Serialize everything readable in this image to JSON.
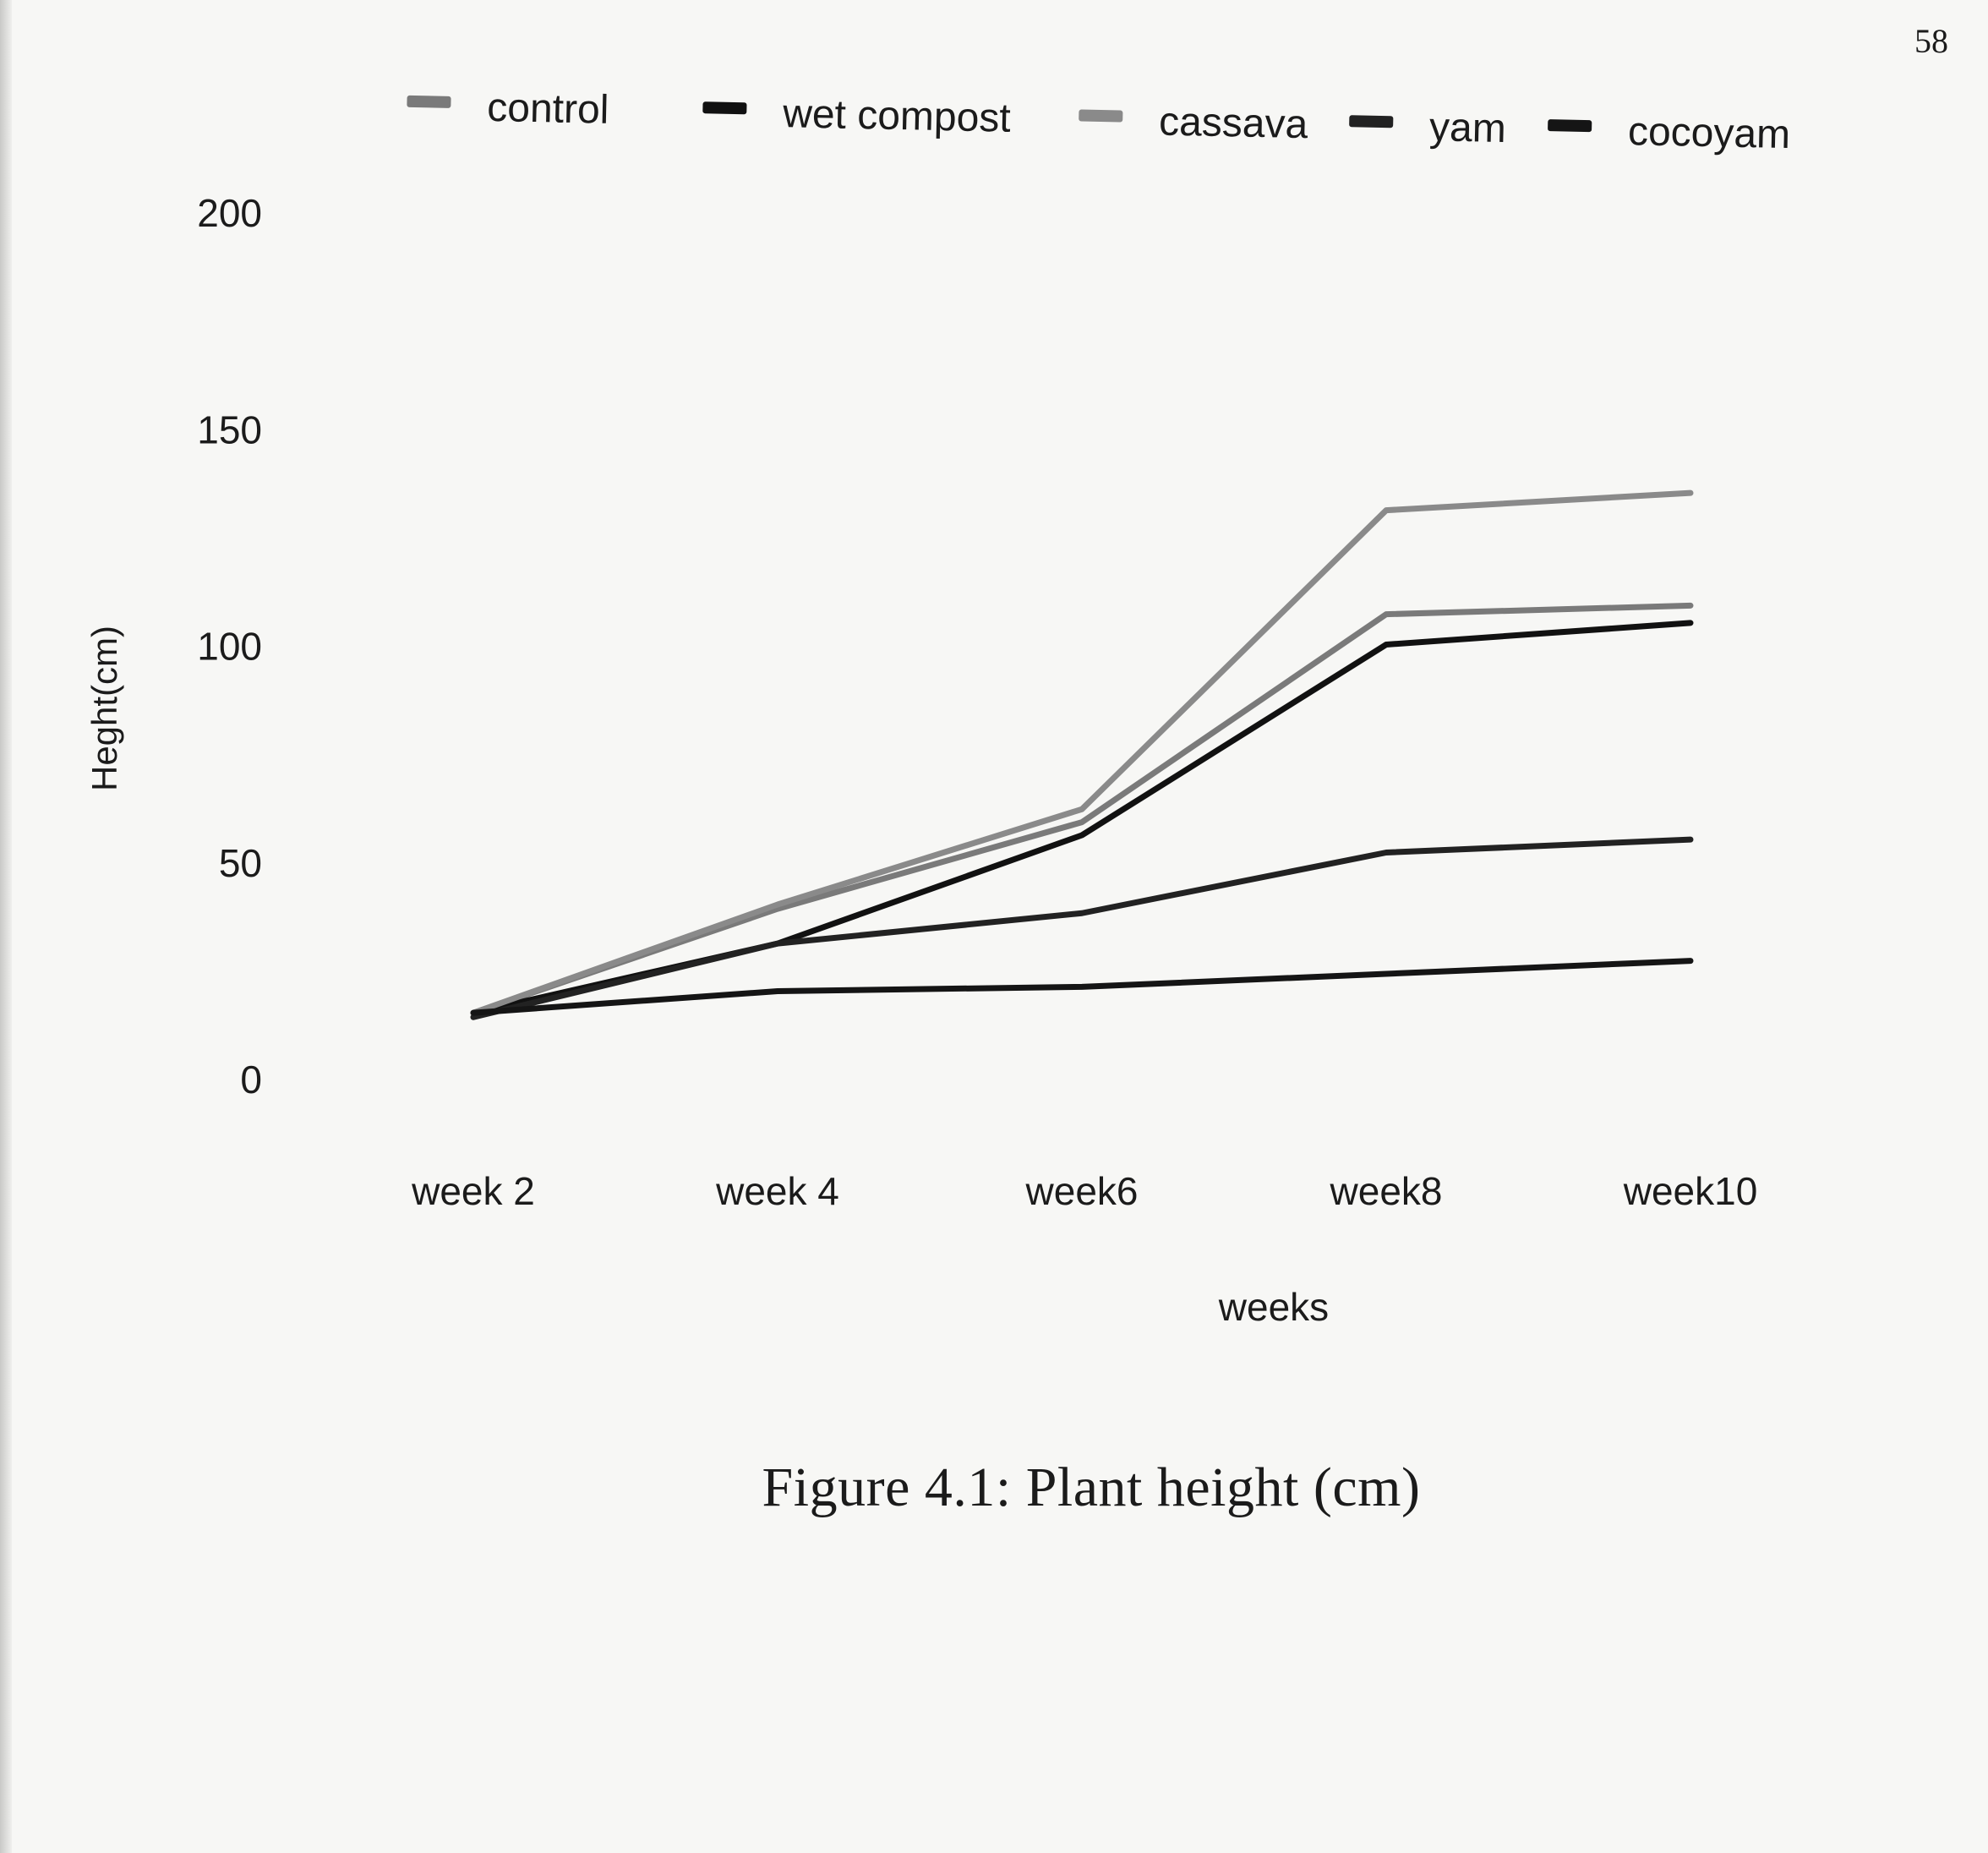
{
  "page_number": "58",
  "caption": "Figure 4.1: Plant  height (cm)",
  "chart_data": {
    "type": "line",
    "title": "",
    "xlabel": "weeks",
    "ylabel": "Heght(cm)",
    "categories": [
      "week 2",
      "week 4",
      "week6",
      "week8",
      "week10"
    ],
    "ylim": [
      0,
      200
    ],
    "yticks": [
      0,
      50,
      100,
      150,
      200
    ],
    "grid": false,
    "legend_position": "top",
    "series": [
      {
        "name": "control",
        "color": "#7a7a7a",
        "values": [
          15,
          39,
          59,
          107,
          109
        ]
      },
      {
        "name": "wet compost",
        "color": "#111111",
        "values": [
          15,
          31,
          56,
          100,
          105
        ]
      },
      {
        "name": "cassava",
        "color": "#8a8a8a",
        "values": [
          15,
          40,
          62,
          131,
          135
        ]
      },
      {
        "name": "yam",
        "color": "#222222",
        "values": [
          14,
          31,
          38,
          52,
          55
        ]
      },
      {
        "name": "cocoyam",
        "color": "#151515",
        "values": [
          15,
          20,
          21,
          24,
          27
        ]
      }
    ]
  }
}
